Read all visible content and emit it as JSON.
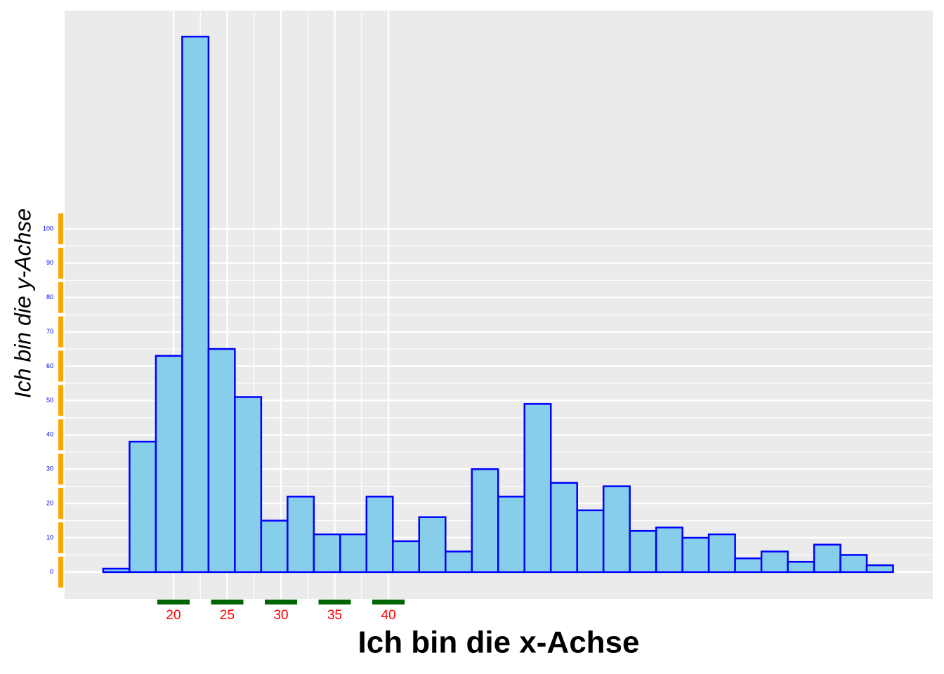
{
  "chart_data": {
    "type": "histogram",
    "x_label": "Ich bin die x-Achse",
    "y_label": "Ich bin die y-Achse",
    "bins": [
      13.46,
      15.91,
      18.36,
      20.81,
      23.26,
      25.71,
      28.16,
      30.61,
      33.06,
      35.51,
      37.96,
      40.41,
      42.86,
      45.31,
      47.76,
      50.21,
      52.66,
      55.11,
      57.56,
      60.01,
      62.46,
      64.91,
      67.36,
      69.81,
      72.26,
      74.71,
      77.16,
      79.61,
      82.06,
      84.51,
      86.96
    ],
    "values": [
      1,
      38,
      63,
      156,
      65,
      51,
      15,
      22,
      11,
      11,
      22,
      9,
      16,
      6,
      30,
      22,
      49,
      26,
      18,
      25,
      12,
      13,
      10,
      11,
      4,
      6,
      3,
      8,
      5,
      2
    ],
    "color": "#87ceeb",
    "edge_color": "#0000ff",
    "xlim": [
      9.87,
      90.65
    ],
    "ylim": [
      -7.8,
      163.6
    ],
    "xticks": [
      20,
      25,
      30,
      35,
      40
    ],
    "yticks": [
      0,
      10,
      20,
      30,
      40,
      50,
      60,
      70,
      80,
      90,
      100
    ],
    "grid": true,
    "xtick_color": "#006400",
    "ytick_color": "#ffa500",
    "xtick_label_color": "#ff0000",
    "ytick_label_color": "#0000ff"
  }
}
